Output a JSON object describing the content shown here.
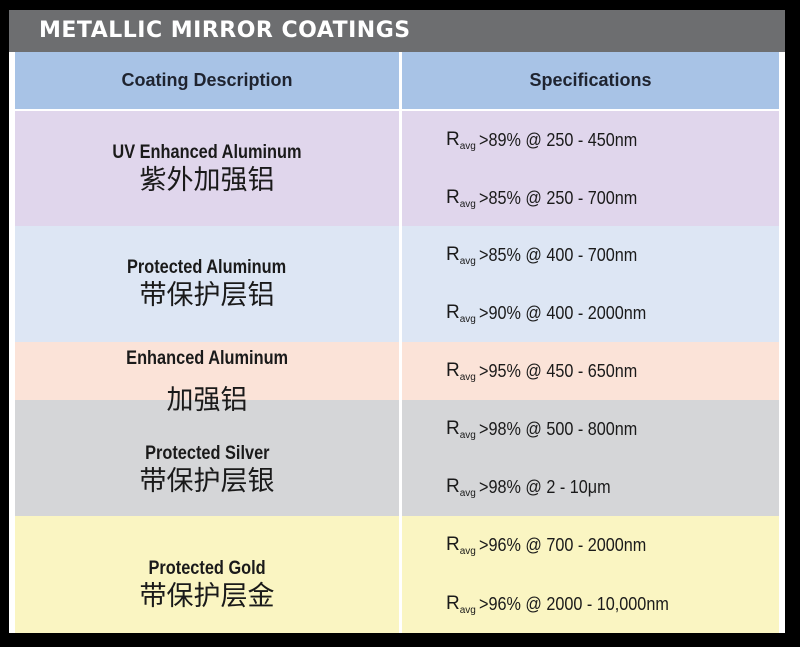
{
  "title": "METALLIC MIRROR COATINGS",
  "headers": {
    "description": "Coating Description",
    "specifications": "Specifications"
  },
  "r_symbol": "R",
  "r_subscript": "avg",
  "colors": {
    "title_bar": "#6d6e70",
    "header": "#a8c3e6",
    "uv_enhanced_aluminum": "#e0d6ec",
    "protected_aluminum": "#dde6f4",
    "enhanced_aluminum": "#fbe3d8",
    "protected_silver": "#d5d6d8",
    "protected_gold": "#faf5c2"
  },
  "coatings": [
    {
      "en": "UV Enhanced Aluminum",
      "zh": "紫外加强铝",
      "specs": [
        ">89% @ 250 - 450nm",
        ">85% @ 250 - 700nm"
      ]
    },
    {
      "en": "Protected Aluminum",
      "zh": "带保护层铝",
      "specs": [
        ">85% @ 400 - 700nm",
        ">90% @ 400 - 2000nm"
      ]
    },
    {
      "en": "Enhanced Aluminum",
      "zh": "加强铝",
      "specs": [
        ">95% @ 450 - 650nm"
      ]
    },
    {
      "en": "Protected Silver",
      "zh": "带保护层银",
      "specs": [
        ">98% @ 500 - 800nm",
        ">98% @ 2 - 10μm"
      ]
    },
    {
      "en": "Protected Gold",
      "zh": "带保护层金",
      "specs": [
        ">96% @ 700 - 2000nm",
        ">96% @ 2000 - 10,000nm"
      ]
    }
  ]
}
